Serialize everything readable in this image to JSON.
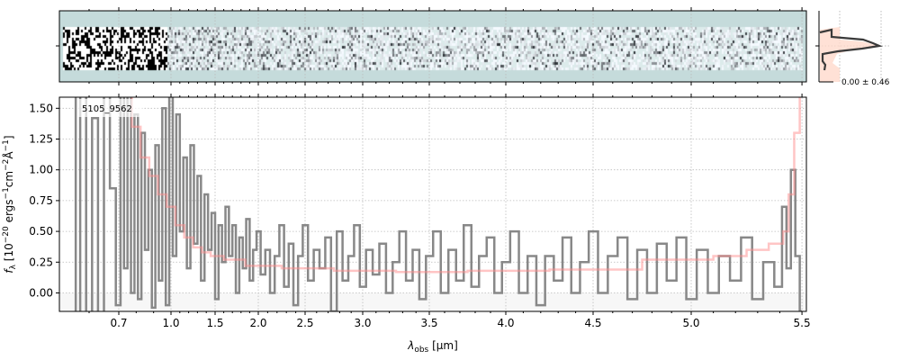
{
  "chart_data": {
    "type": "line",
    "object_label": "5105_9562",
    "xlabel": {
      "main": "λ",
      "sub": "obs",
      "unit": " [μm]"
    },
    "ylabel": {
      "f": "f",
      "sub": "λ",
      "a": " [10",
      "e1": "−20",
      "b": " ergs",
      "e2": "−1",
      "c": "cm",
      "e3": "−2",
      "d": "Å",
      "e4": "−1",
      "e": "]"
    },
    "xticks": [
      "0.7",
      "1.0",
      "1.5",
      "2.0",
      "2.5",
      "3.0",
      "3.5",
      "4.0",
      "4.5",
      "5.0",
      "5.5"
    ],
    "yticks": [
      "0.00",
      "0.25",
      "0.50",
      "0.75",
      "1.00",
      "1.25",
      "1.50"
    ],
    "xlim": [
      0.5,
      5.52
    ],
    "ylim": [
      -0.15,
      1.59
    ],
    "grid": true,
    "colors": {
      "spectrum": "#888888",
      "model": "#ff8c8c",
      "twod_bg": "#c5dbdb",
      "hist_line": "#3a3a3a",
      "hist_fill": "#ffd9cc"
    },
    "histogram_label": "0.00 ± 0.46",
    "series": [
      {
        "x": [
          0.55,
          0.56,
          0.58,
          0.6,
          0.62,
          0.64,
          0.66,
          0.68,
          0.7,
          0.72,
          0.74,
          0.76,
          0.78,
          0.8,
          0.82,
          0.84,
          0.86,
          0.88,
          0.9,
          0.92,
          0.94,
          0.96,
          0.98,
          1.0,
          1.04,
          1.08,
          1.12,
          1.16,
          1.2,
          1.24,
          1.28,
          1.32,
          1.36,
          1.4,
          1.44,
          1.48,
          1.52,
          1.56,
          1.6,
          1.64,
          1.68,
          1.72,
          1.76,
          1.8,
          1.84,
          1.88,
          1.92,
          1.96,
          2.0,
          2.05,
          2.1,
          2.15,
          2.2,
          2.25,
          2.3,
          2.35,
          2.4,
          2.45,
          2.5,
          2.55,
          2.6,
          2.65,
          2.7,
          2.75,
          2.8,
          2.85,
          2.9,
          2.95,
          3.0,
          3.05,
          3.1,
          3.15,
          3.2,
          3.25,
          3.3,
          3.35,
          3.4,
          3.45,
          3.5,
          3.55,
          3.6,
          3.65,
          3.7,
          3.75,
          3.8,
          3.85,
          3.9,
          3.95,
          4.0,
          4.05,
          4.1,
          4.15,
          4.2,
          4.25,
          4.3,
          4.35,
          4.4,
          4.45,
          4.5,
          4.55,
          4.6,
          4.65,
          4.7,
          4.75,
          4.8,
          4.85,
          4.9,
          4.95,
          5.0,
          5.05,
          5.1,
          5.15,
          5.2,
          5.25,
          5.3,
          5.35,
          5.4,
          5.42,
          5.44,
          5.46,
          5.48,
          5.5
        ],
        "y": [
          1.7,
          -0.2,
          1.7,
          -0.2,
          1.42,
          -0.2,
          1.7,
          0.85,
          -0.1,
          1.7,
          0.2,
          1.7,
          0.0,
          1.45,
          -0.05,
          1.3,
          0.35,
          1.0,
          -0.12,
          1.2,
          0.1,
          1.5,
          -0.1,
          1.7,
          0.3,
          1.45,
          0.5,
          1.1,
          0.2,
          1.2,
          0.4,
          0.95,
          0.1,
          0.8,
          0.35,
          0.65,
          -0.05,
          0.55,
          0.25,
          0.7,
          0.3,
          0.55,
          0.0,
          0.45,
          0.2,
          0.6,
          0.1,
          0.35,
          0.5,
          0.15,
          0.35,
          0.0,
          0.3,
          0.55,
          0.05,
          0.4,
          -0.1,
          0.3,
          0.55,
          0.1,
          0.35,
          0.2,
          0.45,
          -0.15,
          0.5,
          0.1,
          0.3,
          0.55,
          0.05,
          0.35,
          0.15,
          0.4,
          0.0,
          0.25,
          0.5,
          0.1,
          0.35,
          -0.05,
          0.3,
          0.5,
          0.0,
          0.35,
          0.1,
          0.55,
          0.05,
          0.3,
          0.45,
          0.0,
          0.25,
          0.5,
          0.0,
          0.3,
          -0.1,
          0.3,
          0.1,
          0.45,
          0.0,
          0.25,
          0.5,
          0.0,
          0.3,
          0.45,
          -0.05,
          0.35,
          0.0,
          0.4,
          0.1,
          0.45,
          -0.05,
          0.35,
          0.0,
          0.3,
          0.1,
          0.45,
          -0.05,
          0.25,
          0.05,
          0.7,
          0.2,
          1.0,
          0.3,
          -0.15
        ]
      },
      {
        "x": [
          0.75,
          0.8,
          0.85,
          0.9,
          0.95,
          1.0,
          1.1,
          1.2,
          1.3,
          1.4,
          1.5,
          1.7,
          2.0,
          2.5,
          3.0,
          3.5,
          4.0,
          4.5,
          5.0,
          5.2,
          5.3,
          5.4,
          5.43,
          5.45,
          5.48,
          5.5
        ],
        "y": [
          1.6,
          1.35,
          1.1,
          0.95,
          0.8,
          0.7,
          0.55,
          0.45,
          0.37,
          0.33,
          0.3,
          0.27,
          0.22,
          0.2,
          0.18,
          0.17,
          0.18,
          0.19,
          0.27,
          0.3,
          0.35,
          0.4,
          0.5,
          0.8,
          1.3,
          1.6
        ]
      }
    ]
  }
}
